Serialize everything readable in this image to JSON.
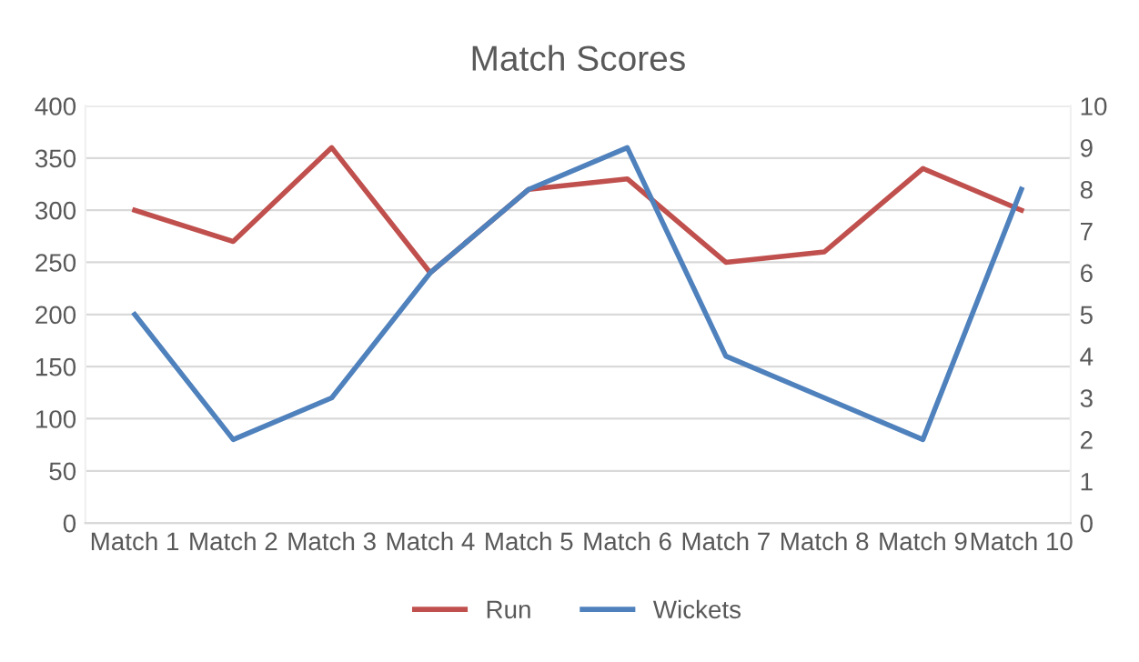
{
  "chart_data": {
    "type": "line",
    "title": "Match Scores",
    "categories": [
      "Match 1",
      "Match 2",
      "Match 3",
      "Match 4",
      "Match 5",
      "Match 6",
      "Match 7",
      "Match 8",
      "Match 9",
      "Match 10"
    ],
    "series": [
      {
        "name": "Run",
        "color": "#c0504d",
        "values": [
          300,
          270,
          360,
          240,
          320,
          330,
          250,
          260,
          340,
          300
        ]
      },
      {
        "name": "Wickets",
        "color": "#4f81bd",
        "axis": "y2",
        "values": [
          5,
          2,
          3,
          6,
          8,
          9,
          4,
          3,
          2,
          8
        ]
      }
    ],
    "ylim": [
      0,
      400
    ],
    "yticks": [
      0,
      50,
      100,
      150,
      200,
      250,
      300,
      350,
      400
    ],
    "y2lim": [
      0,
      10
    ],
    "y2ticks": [
      0,
      1,
      2,
      3,
      4,
      5,
      6,
      7,
      8,
      9,
      10
    ],
    "grid": "y",
    "legend": "bottom",
    "marker": "none",
    "line_style": "solid"
  }
}
